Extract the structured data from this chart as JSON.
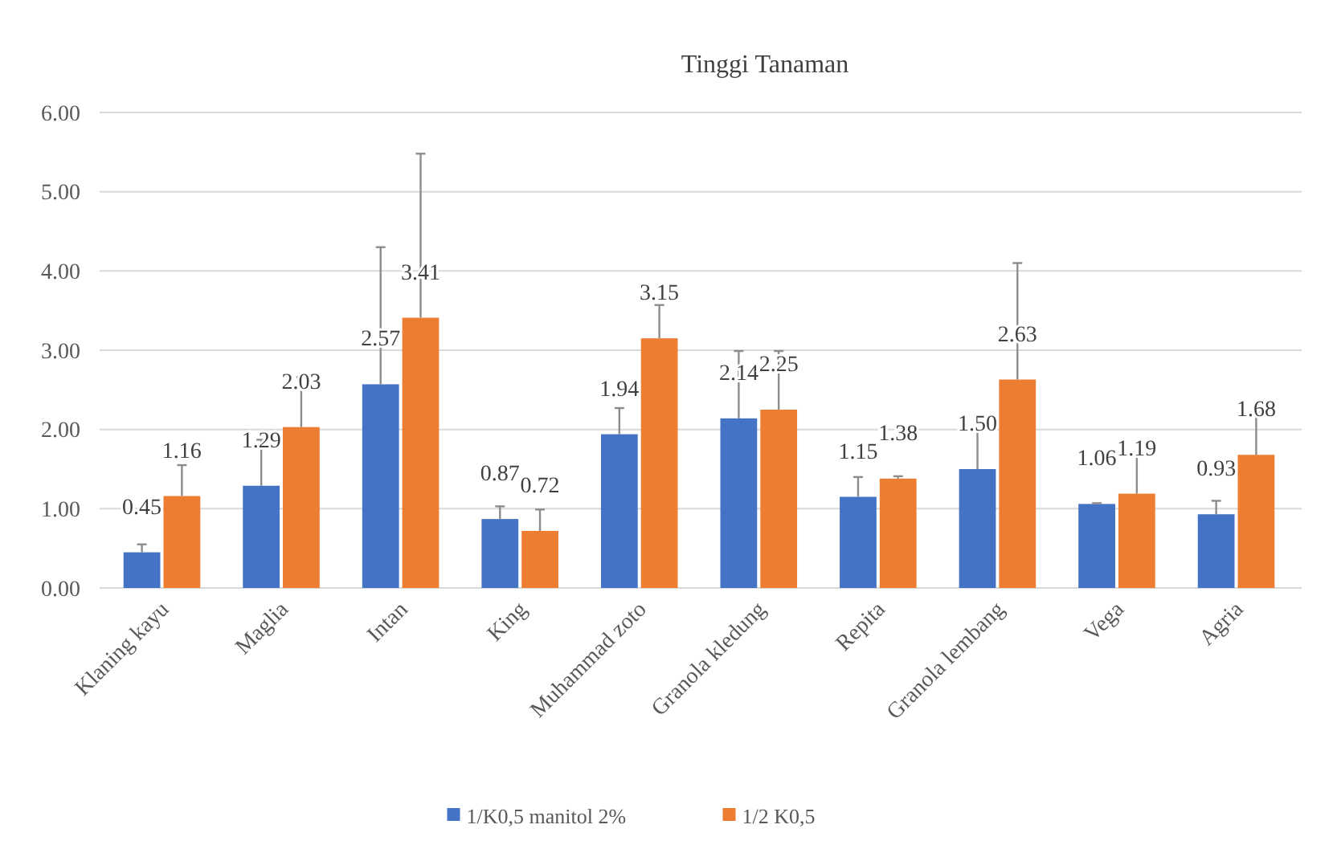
{
  "chart_data": {
    "type": "bar",
    "title": "Tinggi  Tanaman",
    "categories": [
      "Klaning kayu",
      "Maglia",
      "Intan",
      "King",
      "Muhammad zoto",
      "Granola kledung",
      "Repita",
      "Granola lembang",
      "Vega",
      "Agria"
    ],
    "series": [
      {
        "name": "1/K0,5 manitol 2%",
        "color": "#4472c4",
        "values": [
          0.45,
          1.29,
          2.57,
          0.87,
          1.94,
          2.14,
          1.15,
          1.5,
          1.06,
          0.93
        ],
        "value_labels": [
          "0.45",
          "1.29",
          "2.57",
          "0.87",
          "1.94",
          "2.14",
          "1.15",
          "1.50",
          "1.06",
          "0.93"
        ],
        "errors": [
          [
            0.45,
            0.55
          ],
          [
            1.29,
            1.87
          ],
          [
            2.57,
            4.3
          ],
          [
            0.87,
            1.03
          ],
          [
            1.94,
            2.27
          ],
          [
            2.14,
            2.99
          ],
          [
            1.15,
            1.4
          ],
          [
            1.5,
            2.0
          ],
          [
            1.06,
            1.07
          ],
          [
            0.93,
            1.1
          ]
        ]
      },
      {
        "name": "1/2 K0,5",
        "color": "#ed7d31",
        "values": [
          1.16,
          2.03,
          3.41,
          0.72,
          3.15,
          2.25,
          1.38,
          2.63,
          1.19,
          1.68
        ],
        "value_labels": [
          "1.16",
          "2.03",
          "3.41",
          "0.72",
          "3.15",
          "2.25",
          "1.38",
          "2.63",
          "1.19",
          "1.68"
        ],
        "errors": [
          [
            1.16,
            1.55
          ],
          [
            2.03,
            2.66
          ],
          [
            3.41,
            5.48
          ],
          [
            0.72,
            0.99
          ],
          [
            3.15,
            3.57
          ],
          [
            2.25,
            2.99
          ],
          [
            1.38,
            1.41
          ],
          [
            2.63,
            4.1
          ],
          [
            1.19,
            1.68
          ],
          [
            1.68,
            2.22
          ]
        ]
      }
    ],
    "ylim": [
      0,
      6
    ],
    "yticks": [
      {
        "value": 0,
        "label": "0.00"
      },
      {
        "value": 1,
        "label": "1.00"
      },
      {
        "value": 2,
        "label": "2.00"
      },
      {
        "value": 3,
        "label": "3.00"
      },
      {
        "value": 4,
        "label": "4.00"
      },
      {
        "value": 5,
        "label": "5.00"
      },
      {
        "value": 6,
        "label": "6.00"
      }
    ],
    "grid": "y",
    "legend": "bottom"
  }
}
